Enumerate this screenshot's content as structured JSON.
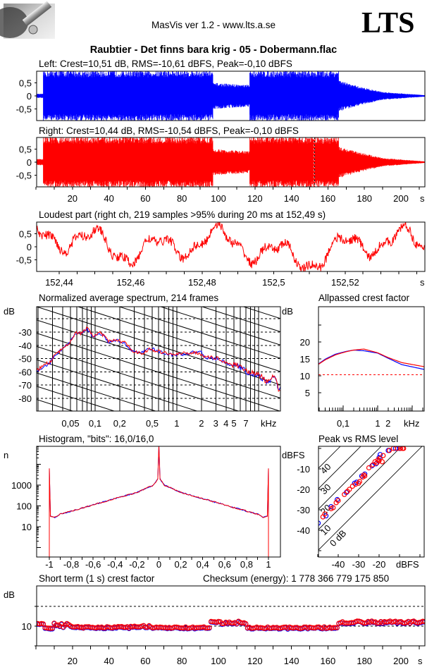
{
  "header": {
    "app_title": "MasVis ver 1.2 - www.lts.a.se",
    "brand": "LTS",
    "file_title": "Raubtier - Det finns bara krig - 05 - Dobermann.flac"
  },
  "colors": {
    "left": "#0000ff",
    "right": "#ff0000",
    "axis": "#000000",
    "background": "#ffffff"
  },
  "chart_data": [
    {
      "id": "left_waveform",
      "type": "area",
      "channel": "left",
      "title": "Left: Crest=10,51 dB, RMS=-10,61 dBFS, Peak=-0,10 dBFS",
      "ylim": [
        -1,
        1
      ],
      "yticks": [
        0.5,
        0,
        -0.5
      ],
      "ytick_labels": [
        "0,5",
        "0",
        "-0,5"
      ],
      "xlim": [
        0,
        213
      ],
      "envelope": [
        [
          0,
          4,
          0.08,
          0.08
        ],
        [
          4,
          97,
          0.98,
          0.98
        ],
        [
          97,
          117,
          0.5,
          0.42
        ],
        [
          117,
          166,
          0.98,
          0.98
        ],
        [
          166,
          175,
          0.6,
          0.4
        ],
        [
          175,
          190,
          0.4,
          0.15
        ],
        [
          190,
          213,
          0.15,
          0.03
        ]
      ]
    },
    {
      "id": "right_waveform",
      "type": "area",
      "channel": "right",
      "title": "Right: Crest=10,44 dB, RMS=-10,54 dBFS, Peak=-0,10 dBFS",
      "ylim": [
        -1,
        1
      ],
      "yticks": [
        0.5,
        0,
        -0.5
      ],
      "ytick_labels": [
        "0,5",
        "0",
        "-0,5"
      ],
      "xlim": [
        0,
        213
      ],
      "xticks": [
        20,
        40,
        60,
        80,
        100,
        120,
        140,
        160,
        180,
        200
      ],
      "xtick_labels": [
        "20",
        "40",
        "60",
        "80",
        "100",
        "120",
        "140",
        "160",
        "180",
        "200"
      ],
      "xunit": "s",
      "marker_time": 152.49,
      "envelope": [
        [
          0,
          4,
          0.12,
          0.12
        ],
        [
          4,
          97,
          0.98,
          0.98
        ],
        [
          97,
          117,
          0.5,
          0.42
        ],
        [
          117,
          166,
          0.98,
          0.98
        ],
        [
          166,
          175,
          0.62,
          0.42
        ],
        [
          175,
          190,
          0.42,
          0.16
        ],
        [
          190,
          213,
          0.16,
          0.03
        ]
      ]
    },
    {
      "id": "loudest_part",
      "type": "line",
      "channel": "right",
      "title": "Loudest part (right ch, 219 samples >95% during 20 ms at 152,49 s)",
      "ylim": [
        -1,
        1
      ],
      "yticks": [
        0.5,
        0,
        -0.5
      ],
      "ytick_labels": [
        "0,5",
        "0",
        "-0,5"
      ],
      "xlim": [
        152.4337,
        152.5423
      ],
      "xticks": [
        152.44,
        152.46,
        152.48,
        152.5,
        152.52
      ],
      "xtick_labels": [
        "152,44",
        "152,46",
        "152,48",
        "152,5",
        "152,52"
      ],
      "xunit": "s"
    },
    {
      "id": "spectrum",
      "type": "line",
      "title": "Normalized average spectrum, 214 frames",
      "ylabel": "dB",
      "ylim": [
        -89.6,
        -10.8
      ],
      "yticks": [
        -30,
        -40,
        -50,
        -60,
        -70,
        -80
      ],
      "ytick_labels": [
        "-30",
        "-40",
        "-50",
        "-60",
        "-70",
        "-80"
      ],
      "xscale": "log",
      "xlim_khz": [
        0.019,
        19.5
      ],
      "xticks": [
        0.05,
        0.1,
        0.2,
        0.5,
        1,
        2,
        3,
        4,
        5,
        7
      ],
      "xtick_labels": [
        "0,05",
        "0,1",
        "0,2",
        "0,5",
        "1",
        "2",
        "3",
        "4",
        "5",
        "7"
      ],
      "xunit": "kHz",
      "series": [
        {
          "name": "right",
          "points": [
            [
              0.02,
              -58.7
            ],
            [
              0.0235,
              -54.5
            ],
            [
              0.028,
              -53
            ],
            [
              0.032,
              -47
            ],
            [
              0.036,
              -45.4
            ],
            [
              0.043,
              -40
            ],
            [
              0.048,
              -38.5
            ],
            [
              0.052,
              -35
            ],
            [
              0.058,
              -30.5
            ],
            [
              0.068,
              -31
            ],
            [
              0.08,
              -27
            ],
            [
              0.096,
              -33
            ],
            [
              0.117,
              -30.5
            ],
            [
              0.146,
              -37
            ],
            [
              0.187,
              -36
            ],
            [
              0.23,
              -38
            ],
            [
              0.29,
              -44
            ],
            [
              0.37,
              -46.5
            ],
            [
              0.46,
              -43
            ],
            [
              0.69,
              -45.5
            ],
            [
              0.93,
              -47
            ],
            [
              1.46,
              -45.5
            ],
            [
              1.9,
              -46
            ],
            [
              2.3,
              -49
            ],
            [
              3.1,
              -49.5
            ],
            [
              4.6,
              -54.5
            ],
            [
              5.8,
              -55
            ],
            [
              7.6,
              -60
            ],
            [
              10.3,
              -62.5
            ],
            [
              12.9,
              -68
            ],
            [
              15.6,
              -63
            ],
            [
              17.7,
              -73.5
            ],
            [
              19.5,
              -72
            ]
          ]
        },
        {
          "name": "left",
          "points": [
            [
              0.02,
              -59
            ],
            [
              0.0235,
              -56
            ],
            [
              0.028,
              -53.5
            ],
            [
              0.032,
              -47.5
            ],
            [
              0.036,
              -45
            ],
            [
              0.043,
              -40.5
            ],
            [
              0.048,
              -38.5
            ],
            [
              0.052,
              -35.5
            ],
            [
              0.058,
              -31
            ],
            [
              0.068,
              -31.5
            ],
            [
              0.08,
              -28
            ],
            [
              0.096,
              -33.5
            ],
            [
              0.117,
              -31
            ],
            [
              0.146,
              -37.5
            ],
            [
              0.187,
              -36.5
            ],
            [
              0.23,
              -38.5
            ],
            [
              0.29,
              -44.5
            ],
            [
              0.37,
              -46
            ],
            [
              0.46,
              -42
            ],
            [
              0.69,
              -46
            ],
            [
              0.93,
              -47.5
            ],
            [
              1.46,
              -46
            ],
            [
              1.9,
              -44
            ],
            [
              2.3,
              -49.5
            ],
            [
              3.1,
              -50
            ],
            [
              4.6,
              -55
            ],
            [
              5.8,
              -56
            ],
            [
              7.6,
              -61
            ],
            [
              10.3,
              -63.5
            ],
            [
              12.9,
              -69
            ],
            [
              15.6,
              -62
            ],
            [
              17.7,
              -74
            ],
            [
              19.5,
              -73
            ]
          ]
        }
      ]
    },
    {
      "id": "allpassed_crest",
      "type": "line",
      "title": "Allpassed crest factor",
      "ylabel": "dB",
      "ylim": [
        -0.4,
        30.4
      ],
      "yticks": [
        20,
        15,
        10,
        5
      ],
      "ytick_labels": [
        "20",
        "15",
        "10",
        "5"
      ],
      "xscale": "log",
      "xticks": [
        0.1,
        1,
        2
      ],
      "xtick_labels": [
        "0,1",
        "1",
        "2"
      ],
      "xunit": "kHz",
      "reference_level": 10.3,
      "series": [
        {
          "name": "left",
          "points": [
            [
              0.018,
              13.3
            ],
            [
              0.03,
              14.9
            ],
            [
              0.06,
              16.4
            ],
            [
              0.12,
              17.2
            ],
            [
              0.2,
              17.6
            ],
            [
              0.4,
              17.4
            ],
            [
              1,
              16.7
            ],
            [
              2,
              15.2
            ],
            [
              5,
              13.3
            ],
            [
              22,
              11.9
            ]
          ]
        },
        {
          "name": "right",
          "points": [
            [
              0.018,
              13.2
            ],
            [
              0.03,
              14.7
            ],
            [
              0.06,
              16.2
            ],
            [
              0.12,
              17.1
            ],
            [
              0.2,
              17.6
            ],
            [
              0.4,
              17.9
            ],
            [
              1,
              16.8
            ],
            [
              2,
              15.4
            ],
            [
              5,
              13.9
            ],
            [
              22,
              12.7
            ]
          ]
        }
      ]
    },
    {
      "id": "histogram",
      "type": "line",
      "title": "Histogram, \"bits\": 16,0/16,0",
      "ylabel": "n",
      "yscale": "log",
      "yticks": [
        1000,
        100,
        10
      ],
      "ytick_labels": [
        "1000",
        "100",
        "10"
      ],
      "xlim": [
        -1.12,
        1.11
      ],
      "xticks": [
        -1,
        -0.8,
        -0.6,
        -0.4,
        -0.2,
        0,
        0.2,
        0.4,
        0.6,
        0.8,
        1
      ],
      "xtick_labels": [
        "-1",
        "-0,8",
        "-0,6",
        "-0,4",
        "-0,2",
        "0",
        "0,2",
        "0,4",
        "0,6",
        "0,8",
        "1"
      ],
      "points": [
        [
          -1,
          0
        ],
        [
          -1,
          6300
        ],
        [
          -0.99,
          32
        ],
        [
          -0.95,
          28
        ],
        [
          -0.9,
          40
        ],
        [
          -0.8,
          56
        ],
        [
          -0.6,
          112
        ],
        [
          -0.4,
          224
        ],
        [
          -0.2,
          447
        ],
        [
          -0.05,
          1000
        ],
        [
          -0.01,
          2000
        ],
        [
          0,
          80000
        ],
        [
          0.01,
          2000
        ],
        [
          0.05,
          1000
        ],
        [
          0.2,
          447
        ],
        [
          0.4,
          224
        ],
        [
          0.6,
          112
        ],
        [
          0.8,
          56
        ],
        [
          0.9,
          40
        ],
        [
          0.95,
          28
        ],
        [
          0.99,
          32
        ],
        [
          1,
          6300
        ],
        [
          1,
          0
        ]
      ]
    },
    {
      "id": "peak_vs_rms",
      "type": "scatter",
      "title": "Peak vs RMS level",
      "ylabel": "dBFS",
      "yticks": [
        -10,
        -20,
        -30,
        -40
      ],
      "ytick_labels": [
        "-10",
        "-20",
        "-30",
        "-40"
      ],
      "xticks": [
        -40,
        -30,
        -20
      ],
      "xtick_labels": [
        "-40",
        "-30",
        "-20"
      ],
      "xunit": "dBFS",
      "xlim": [
        -49.7,
        -2
      ],
      "ylim": [
        -53,
        1
      ],
      "crest_lines": [
        40,
        30,
        20,
        10,
        0
      ],
      "crest_line_labels": [
        "40",
        "30",
        "20",
        "10",
        "0 dB"
      ],
      "series": [
        {
          "name": "left",
          "points": [
            [
              -49.8,
              -36.5
            ],
            [
              -46,
              -33
            ],
            [
              -43.5,
              -28.5
            ],
            [
              -40.5,
              -25
            ],
            [
              -36,
              -21.5
            ],
            [
              -32,
              -17
            ],
            [
              -31,
              -16.5
            ],
            [
              -28.5,
              -13.5
            ],
            [
              -27,
              -12.5
            ],
            [
              -23.5,
              -8.5
            ],
            [
              -21.5,
              -7.5
            ],
            [
              -20,
              -4.5
            ],
            [
              -19.5,
              -3
            ],
            [
              -15.5,
              -1
            ],
            [
              -12,
              0
            ],
            [
              -10,
              0
            ]
          ]
        },
        {
          "name": "right",
          "points": [
            [
              -47.5,
              -33.5
            ],
            [
              -46.5,
              -32
            ],
            [
              -43.5,
              -29.5
            ],
            [
              -42.5,
              -29
            ],
            [
              -41,
              -26.5
            ],
            [
              -40,
              -25.5
            ],
            [
              -37,
              -22.5
            ],
            [
              -35.5,
              -21
            ],
            [
              -34.5,
              -20
            ],
            [
              -33,
              -18.5
            ],
            [
              -31.5,
              -17.5
            ],
            [
              -30,
              -17
            ],
            [
              -29.5,
              -16.2
            ],
            [
              -28,
              -14
            ],
            [
              -27.5,
              -13
            ],
            [
              -27,
              -13.5
            ],
            [
              -25,
              -9.5
            ],
            [
              -23,
              -8
            ],
            [
              -22,
              -6.5
            ],
            [
              -21,
              -7
            ],
            [
              -20.5,
              -5.5
            ],
            [
              -20,
              -6
            ],
            [
              -19.5,
              -4.8
            ],
            [
              -18.5,
              -6.5
            ],
            [
              -18,
              -3.5
            ],
            [
              -15,
              -1
            ],
            [
              -13,
              0
            ],
            [
              -11,
              0
            ],
            [
              -9.5,
              0
            ],
            [
              -8.5,
              0
            ],
            [
              -8,
              0
            ]
          ]
        }
      ]
    },
    {
      "id": "short_term_crest",
      "type": "scatter",
      "title": "Short term (1 s) crest factor",
      "checksum": "Checksum (energy):  1 778 366 779 175 850",
      "ylabel": "dB",
      "ylim": [
        0,
        29.6
      ],
      "yticks": [
        10
      ],
      "ytick_labels": [
        "10"
      ],
      "dashed_levels": [
        10,
        20
      ],
      "xlim": [
        0,
        213
      ],
      "xticks": [
        20,
        40,
        60,
        80,
        100,
        120,
        140,
        160,
        180,
        200
      ],
      "xtick_labels": [
        "20",
        "40",
        "60",
        "80",
        "100",
        "120",
        "140",
        "160",
        "180",
        "200"
      ],
      "xunit": "s",
      "segments_mean_spread": [
        [
          1,
          4,
          11.3,
          0.3
        ],
        [
          5,
          9,
          9.2,
          0.4
        ],
        [
          10,
          20,
          10.4,
          1.1
        ],
        [
          21,
          50,
          9.4,
          0.4
        ],
        [
          51,
          62,
          9.8,
          0.9
        ],
        [
          63,
          95,
          9.2,
          0.4
        ],
        [
          96,
          115,
          11.7,
          0.8
        ],
        [
          116,
          165,
          9.2,
          0.4
        ],
        [
          166,
          213,
          12.0,
          0.6
        ]
      ]
    }
  ]
}
